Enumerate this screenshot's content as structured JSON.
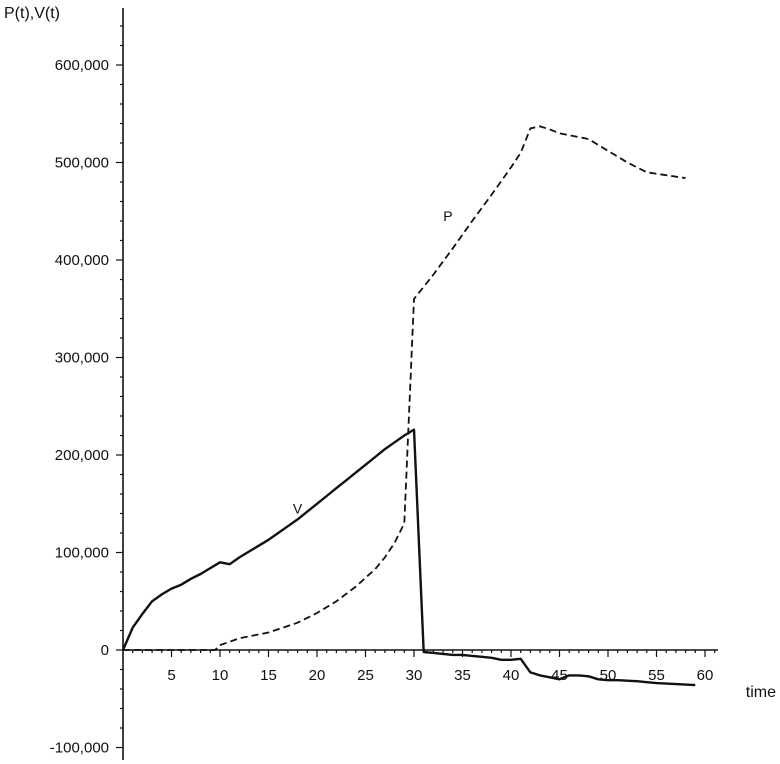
{
  "chart_data": {
    "type": "line",
    "title": "",
    "ylabel": "P(t),V(t)",
    "xlabel": "time",
    "xlim": [
      0,
      60
    ],
    "ylim": [
      -100000,
      600000
    ],
    "x_ticks": [
      5,
      10,
      15,
      20,
      25,
      30,
      35,
      40,
      45,
      50,
      55,
      60
    ],
    "y_ticks": [
      -100000,
      0,
      100000,
      200000,
      300000,
      400000,
      500000,
      600000
    ],
    "y_tick_labels": [
      "-100,000",
      "0",
      "100,000",
      "200,000",
      "300,000",
      "400,000",
      "500,000",
      "600,000"
    ],
    "grid": false,
    "legend": "none",
    "colors": {
      "lines": "#111111",
      "background": "#ffffff"
    },
    "series": [
      {
        "name": "V",
        "style": "solid",
        "x": [
          0,
          1,
          2,
          3,
          4,
          5,
          6,
          7,
          8,
          9,
          10,
          11,
          12,
          13,
          14,
          15,
          16,
          17,
          18,
          19,
          20,
          21,
          22,
          23,
          24,
          25,
          26,
          27,
          28,
          29,
          30,
          31,
          32,
          33,
          34,
          35,
          36,
          37,
          38,
          39,
          40,
          41,
          42,
          43,
          44,
          45,
          46,
          47,
          48,
          49,
          50,
          51,
          52,
          53,
          54,
          55,
          56,
          57,
          58,
          59
        ],
        "values": [
          0,
          23000,
          37000,
          50000,
          57000,
          63000,
          67000,
          73000,
          78000,
          84000,
          90000,
          88000,
          95000,
          101000,
          107000,
          113000,
          120000,
          127000,
          134000,
          142000,
          150000,
          158000,
          166000,
          174000,
          182000,
          190000,
          198000,
          206000,
          213000,
          220000,
          226000,
          -2000,
          -3000,
          -4000,
          -5000,
          -5000,
          -6000,
          -7000,
          -8000,
          -10000,
          -10000,
          -9000,
          -23000,
          -26000,
          -28000,
          -30000,
          -26000,
          -26000,
          -27000,
          -30000,
          -31000,
          -31000,
          -31500,
          -32000,
          -33000,
          -34000,
          -34500,
          -35000,
          -35500,
          -36000
        ]
      },
      {
        "name": "P",
        "style": "dashed",
        "x": [
          0,
          5,
          9.5,
          10,
          12,
          15,
          18,
          20,
          22,
          24,
          26,
          27,
          28,
          29,
          30,
          32,
          34,
          36,
          38,
          40,
          41,
          42,
          43,
          44,
          45,
          46,
          47,
          48,
          49,
          50,
          52,
          54,
          56,
          58
        ],
        "values": [
          0,
          0,
          0,
          5000,
          12000,
          18000,
          28000,
          38000,
          50000,
          65000,
          83000,
          95000,
          110000,
          130000,
          360000,
          385000,
          412000,
          440000,
          467000,
          495000,
          510000,
          535000,
          537000,
          534000,
          530000,
          528000,
          526000,
          524000,
          518000,
          512000,
          500000,
          490000,
          487000,
          484000
        ]
      }
    ],
    "annotations": [
      {
        "text": "V",
        "x": 18,
        "y": 140000
      },
      {
        "text": "P",
        "x": 33.5,
        "y": 440000
      }
    ]
  }
}
